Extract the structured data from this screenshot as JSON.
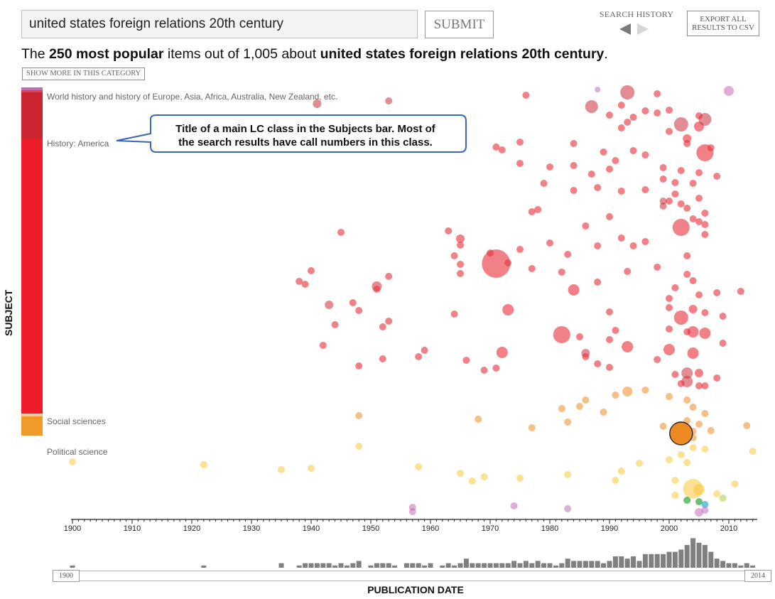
{
  "search": {
    "query": "united states foreign relations 20th century"
  },
  "toolbar": {
    "submit_label": "SUBMIT",
    "history_label": "SEARCH HISTORY",
    "export_label_line1": "EXPORT ALL",
    "export_label_line2": "RESULTS TO CSV",
    "back_icon": "triangle-left-icon",
    "forward_icon": "triangle-right-icon"
  },
  "headline": {
    "prefix": "The ",
    "count_phrase": "250 most popular",
    "middle": " items out of 1,005 about ",
    "topic": "united states foreign relations 20th century",
    "suffix": "."
  },
  "show_more_label": "SHOW MORE IN THIS CATEGORY",
  "subjects": {
    "axis_label": "SUBJECT",
    "labels": {
      "world_history": "World history and history of Europe, Asia, Africa, Australia, New Zealand, etc.",
      "america": "History: America",
      "social_sciences": "Social sciences",
      "political_science": "Political science"
    },
    "colors": {
      "world_history": "#cc2530",
      "america": "#ee1d2b",
      "social_sciences": "#f09a2c",
      "political_science": "#f5c842",
      "misc": "#c56cb6"
    }
  },
  "callout": {
    "line1": "Title of a main LC class in the Subjects bar. Most of",
    "line2": "the search results have call numbers in this class."
  },
  "date_axis": {
    "label": "PUBLICATION DATE",
    "ticks": [
      "1900",
      "1910",
      "1920",
      "1930",
      "1940",
      "1950",
      "1960",
      "1970",
      "1980",
      "1990",
      "2000",
      "2010"
    ],
    "range_start": "1900",
    "range_end": "2014"
  }
}
